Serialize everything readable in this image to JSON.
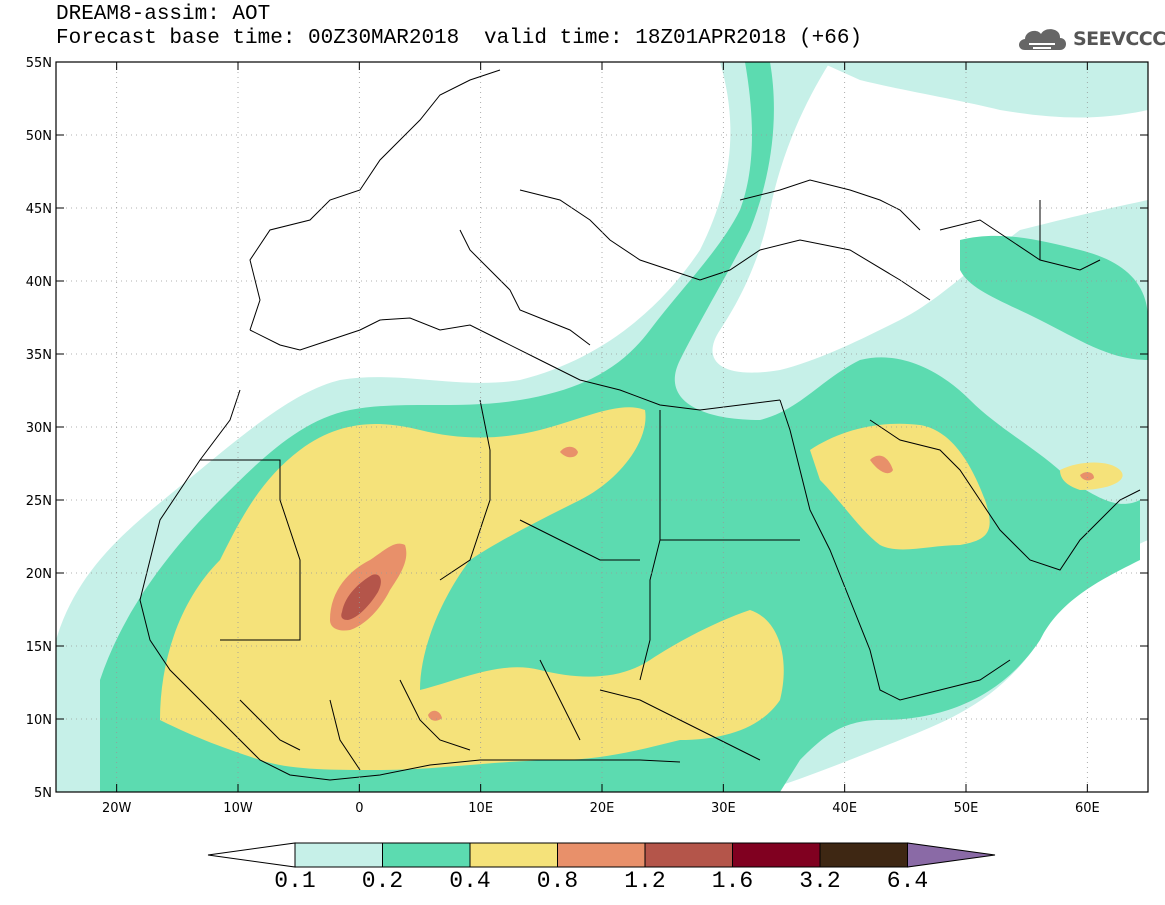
{
  "header": {
    "title": "DREAM8-assim: AOT",
    "base_time": "Forecast base time: 00Z30MAR2018",
    "valid_time": "valid time: 18Z01APR2018 (+66)"
  },
  "logo": {
    "text": "SEEVCCC",
    "icon": "cloud-icon"
  },
  "map": {
    "lat_ticks": [
      "55N",
      "50N",
      "45N",
      "40N",
      "35N",
      "30N",
      "25N",
      "20N",
      "15N",
      "10N",
      "5N"
    ],
    "lon_ticks": [
      "20W",
      "10W",
      "0",
      "10E",
      "20E",
      "30E",
      "40E",
      "50E",
      "60E"
    ],
    "lon_range": [
      -25,
      65
    ],
    "lat_range": [
      5,
      55
    ]
  },
  "colorbar": {
    "labels": [
      "0.1",
      "0.2",
      "0.4",
      "0.8",
      "1.2",
      "1.6",
      "3.2",
      "6.4"
    ],
    "colors": [
      "#ffffff",
      "#c6f0e8",
      "#5ede b2",
      "#f5e27a",
      "#e8906a",
      "#b4554a",
      "#800020",
      "#3e2713",
      "#8a6aa6"
    ]
  },
  "colors": {
    "level1": "#c6f0e8",
    "level2": "#5cdbb0",
    "level3": "#f5e27a",
    "level4": "#e8906a",
    "level5": "#b4554a"
  }
}
